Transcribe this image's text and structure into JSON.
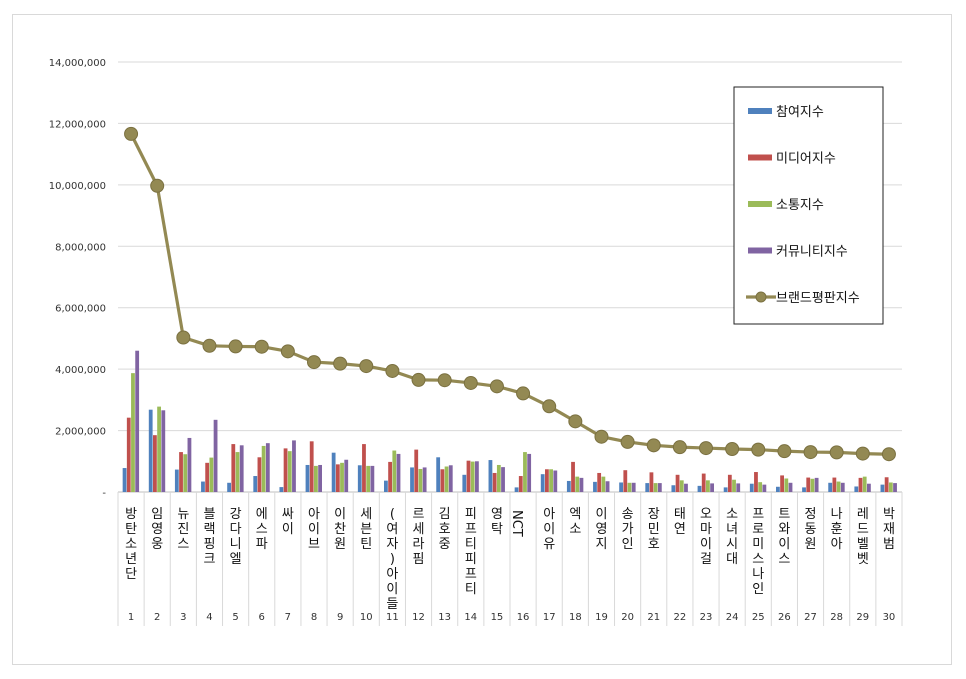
{
  "chart_data": {
    "type": "bar",
    "title": "",
    "xlabel": "",
    "ylabel": "",
    "ylim": [
      0,
      14000000
    ],
    "yticks": [
      "-",
      "2,000,000",
      "4,000,000",
      "6,000,000",
      "8,000,000",
      "10,000,000",
      "12,000,000",
      "14,000,000"
    ],
    "ytick_values": [
      0,
      2000000,
      4000000,
      6000000,
      8000000,
      10000000,
      12000000,
      14000000
    ],
    "grid": true,
    "legend_position": "right",
    "categories": [
      "방탄소년단",
      "임영웅",
      "뉴진스",
      "블랙핑크",
      "강다니엘",
      "에스파",
      "싸이",
      "아이브",
      "이찬원",
      "세븐틴",
      "(여자)아이들",
      "르세라핌",
      "김호중",
      "피프티피프티",
      "영탁",
      "NCT",
      "아이유",
      "엑소",
      "이영지",
      "송가인",
      "장민호",
      "태연",
      "오마이걸",
      "소녀시대",
      "프로미스나인",
      "트와이스",
      "정동원",
      "나훈아",
      "레드벨벳",
      "박재범"
    ],
    "ranks": [
      "1",
      "2",
      "3",
      "4",
      "5",
      "6",
      "7",
      "8",
      "9",
      "10",
      "11",
      "12",
      "13",
      "14",
      "15",
      "16",
      "17",
      "18",
      "19",
      "20",
      "21",
      "22",
      "23",
      "24",
      "25",
      "26",
      "27",
      "28",
      "29",
      "30"
    ],
    "series": [
      {
        "name": "참여지수",
        "color": "#4f81bd",
        "values": [
          780000,
          2680000,
          730000,
          340000,
          300000,
          520000,
          160000,
          880000,
          1280000,
          870000,
          370000,
          800000,
          1130000,
          560000,
          1040000,
          150000,
          580000,
          360000,
          330000,
          310000,
          290000,
          220000,
          200000,
          150000,
          270000,
          170000,
          150000,
          300000,
          180000,
          240000
        ]
      },
      {
        "name": "미디어지수",
        "color": "#c0504d",
        "values": [
          2420000,
          1850000,
          1300000,
          950000,
          1560000,
          1130000,
          1420000,
          1650000,
          900000,
          1560000,
          980000,
          1380000,
          740000,
          1020000,
          620000,
          520000,
          740000,
          980000,
          620000,
          710000,
          640000,
          560000,
          600000,
          560000,
          650000,
          540000,
          470000,
          470000,
          460000,
          480000
        ]
      },
      {
        "name": "소통지수",
        "color": "#9bbb59",
        "values": [
          3870000,
          2780000,
          1230000,
          1120000,
          1300000,
          1500000,
          1330000,
          850000,
          950000,
          850000,
          1350000,
          750000,
          830000,
          990000,
          880000,
          1300000,
          740000,
          500000,
          500000,
          300000,
          290000,
          380000,
          380000,
          400000,
          320000,
          440000,
          430000,
          340000,
          500000,
          310000
        ]
      },
      {
        "name": "커뮤니티지수",
        "color": "#8064a2",
        "values": [
          4600000,
          2660000,
          1760000,
          2350000,
          1520000,
          1590000,
          1680000,
          880000,
          1050000,
          850000,
          1240000,
          800000,
          870000,
          1000000,
          810000,
          1240000,
          700000,
          460000,
          350000,
          300000,
          290000,
          270000,
          280000,
          280000,
          240000,
          300000,
          460000,
          300000,
          270000,
          290000
        ]
      },
      {
        "name": "브랜드평판지수",
        "color": "#938953",
        "type": "line",
        "values": [
          11660000,
          9970000,
          5030000,
          4760000,
          4740000,
          4730000,
          4580000,
          4230000,
          4180000,
          4100000,
          3940000,
          3650000,
          3640000,
          3550000,
          3440000,
          3210000,
          2790000,
          2300000,
          1800000,
          1630000,
          1520000,
          1460000,
          1430000,
          1400000,
          1380000,
          1330000,
          1300000,
          1290000,
          1250000,
          1230000
        ]
      }
    ]
  }
}
